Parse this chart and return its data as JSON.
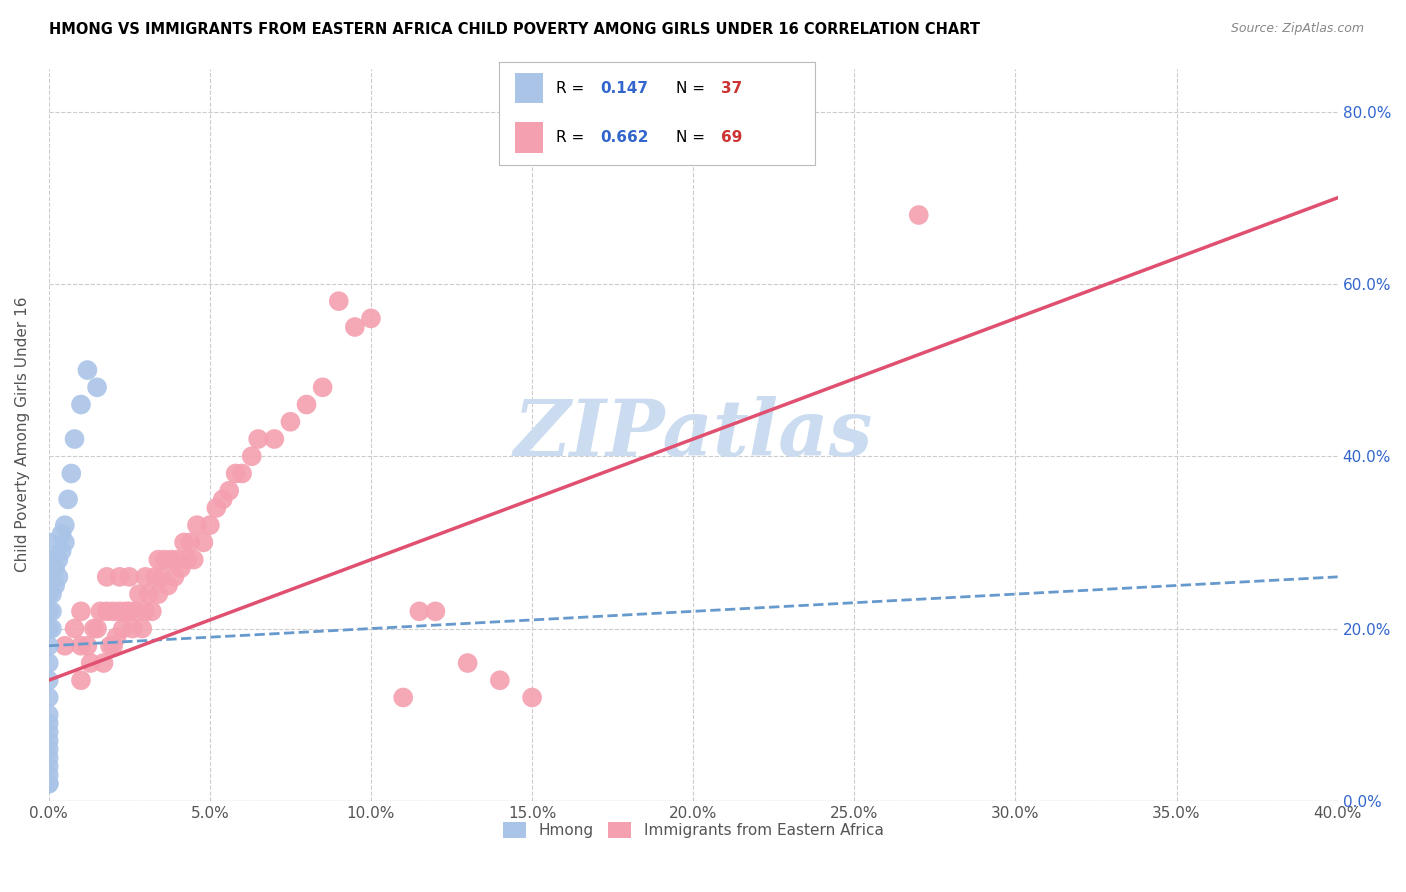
{
  "title": "HMONG VS IMMIGRANTS FROM EASTERN AFRICA CHILD POVERTY AMONG GIRLS UNDER 16 CORRELATION CHART",
  "source": "Source: ZipAtlas.com",
  "ylabel": "Child Poverty Among Girls Under 16",
  "xlim": [
    0.0,
    0.4
  ],
  "ylim": [
    0.0,
    0.85
  ],
  "xtick_vals": [
    0.0,
    0.05,
    0.1,
    0.15,
    0.2,
    0.25,
    0.3,
    0.35,
    0.4
  ],
  "ytick_vals": [
    0.0,
    0.2,
    0.4,
    0.6,
    0.8
  ],
  "hmong_R": 0.147,
  "hmong_N": 37,
  "eastern_africa_R": 0.662,
  "eastern_africa_N": 69,
  "hmong_color": "#aac4e8",
  "eastern_africa_color": "#f4a0b0",
  "hmong_line_color": "#6699cc",
  "eastern_africa_line_color": "#e05070",
  "legend_R_color": "#3366cc",
  "legend_N_color": "#cc3333",
  "watermark": "ZIPatlas",
  "watermark_color": "#ccdcf0",
  "hmong_x": [
    0.0,
    0.0,
    0.0,
    0.0,
    0.0,
    0.0,
    0.0,
    0.0,
    0.0,
    0.0,
    0.0,
    0.0,
    0.0,
    0.0,
    0.0,
    0.0,
    0.0,
    0.0,
    0.0,
    0.0,
    0.001,
    0.001,
    0.001,
    0.002,
    0.002,
    0.003,
    0.003,
    0.004,
    0.004,
    0.005,
    0.005,
    0.006,
    0.007,
    0.008,
    0.01,
    0.012,
    0.015
  ],
  "hmong_y": [
    0.02,
    0.03,
    0.04,
    0.05,
    0.06,
    0.07,
    0.08,
    0.09,
    0.1,
    0.12,
    0.14,
    0.16,
    0.18,
    0.2,
    0.22,
    0.24,
    0.26,
    0.28,
    0.3,
    0.02,
    0.2,
    0.22,
    0.24,
    0.25,
    0.27,
    0.26,
    0.28,
    0.29,
    0.31,
    0.3,
    0.32,
    0.35,
    0.38,
    0.42,
    0.46,
    0.5,
    0.48
  ],
  "eastern_x": [
    0.005,
    0.008,
    0.01,
    0.01,
    0.01,
    0.012,
    0.013,
    0.014,
    0.015,
    0.016,
    0.017,
    0.018,
    0.018,
    0.019,
    0.02,
    0.02,
    0.021,
    0.022,
    0.022,
    0.023,
    0.024,
    0.025,
    0.025,
    0.026,
    0.027,
    0.028,
    0.029,
    0.03,
    0.03,
    0.031,
    0.032,
    0.033,
    0.034,
    0.034,
    0.035,
    0.036,
    0.037,
    0.038,
    0.039,
    0.04,
    0.041,
    0.042,
    0.043,
    0.044,
    0.045,
    0.046,
    0.048,
    0.05,
    0.052,
    0.054,
    0.056,
    0.058,
    0.06,
    0.063,
    0.065,
    0.07,
    0.075,
    0.08,
    0.085,
    0.09,
    0.095,
    0.1,
    0.11,
    0.115,
    0.12,
    0.13,
    0.14,
    0.15,
    0.27
  ],
  "eastern_y": [
    0.18,
    0.2,
    0.14,
    0.18,
    0.22,
    0.18,
    0.16,
    0.2,
    0.2,
    0.22,
    0.16,
    0.22,
    0.26,
    0.18,
    0.18,
    0.22,
    0.19,
    0.22,
    0.26,
    0.2,
    0.22,
    0.22,
    0.26,
    0.2,
    0.22,
    0.24,
    0.2,
    0.22,
    0.26,
    0.24,
    0.22,
    0.26,
    0.24,
    0.28,
    0.26,
    0.28,
    0.25,
    0.28,
    0.26,
    0.28,
    0.27,
    0.3,
    0.28,
    0.3,
    0.28,
    0.32,
    0.3,
    0.32,
    0.34,
    0.35,
    0.36,
    0.38,
    0.38,
    0.4,
    0.42,
    0.42,
    0.44,
    0.46,
    0.48,
    0.58,
    0.55,
    0.56,
    0.12,
    0.22,
    0.22,
    0.16,
    0.14,
    0.12,
    0.68
  ],
  "hmong_line_x": [
    0.0,
    0.4
  ],
  "hmong_line_y": [
    0.18,
    0.26
  ],
  "eastern_line_x": [
    0.0,
    0.4
  ],
  "eastern_line_y": [
    0.14,
    0.7
  ]
}
